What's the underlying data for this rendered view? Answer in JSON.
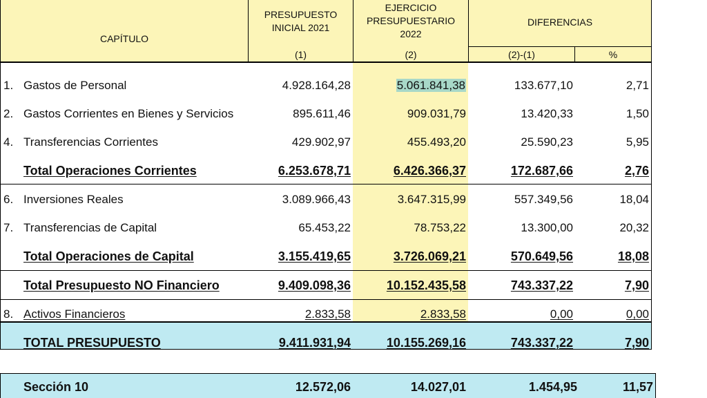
{
  "header": {
    "capitulo": "CAPÍTULO",
    "col1_title": [
      "PRESUPUESTO",
      "INICIAL 2021"
    ],
    "col1_ref": "(1)",
    "col2_title": [
      "EJERCICIO",
      "PRESUPUESTARIO",
      "2022"
    ],
    "col2_ref": "(2)",
    "dif_title": "DIFERENCIAS",
    "dif_ref": "(2)-(1)",
    "pct_ref": "%"
  },
  "rows": [
    {
      "n": "1.",
      "label": "Gastos de Personal",
      "v1": "4.928.164,28",
      "v2": "5.061.841,38",
      "d": "133.677,10",
      "p": "2,71"
    },
    {
      "n": "2.",
      "label": "Gastos Corrientes en Bienes y Servicios",
      "v1": "895.611,46",
      "v2": "909.031,79",
      "d": "13.420,33",
      "p": "1,50"
    },
    {
      "n": "4.",
      "label": "Transferencias Corrientes",
      "v1": "429.902,97",
      "v2": "455.493,20",
      "d": "25.590,23",
      "p": "5,95"
    },
    {
      "n": "",
      "label": "Total Operaciones Corrientes",
      "v1": "6.253.678,71",
      "v2": "6.426.366,37",
      "d": "172.687,66",
      "p": "2,76"
    },
    {
      "n": "6.",
      "label": "Inversiones Reales",
      "v1": "3.089.966,43",
      "v2": "3.647.315,99",
      "d": "557.349,56",
      "p": "18,04"
    },
    {
      "n": "7.",
      "label": "Transferencias de Capital",
      "v1": "65.453,22",
      "v2": "78.753,22",
      "d": "13.300,00",
      "p": "20,32"
    },
    {
      "n": "",
      "label": "Total Operaciones de Capital",
      "v1": "3.155.419,65",
      "v2": "3.726.069,21",
      "d": "570.649,56",
      "p": "18,08"
    },
    {
      "n": "",
      "label": "Total Presupuesto NO Financiero",
      "v1": "9.409.098,36",
      "v2": "10.152.435,58",
      "d": "743.337,22",
      "p": "7,90"
    },
    {
      "n": "8.",
      "label": "Activos Financieros",
      "v1": "2.833,58",
      "v2": "2.833,58",
      "d": "0,00",
      "p": "0,00"
    },
    {
      "n": "",
      "label": "TOTAL PRESUPUESTO",
      "v1": "9.411.931,94",
      "v2": "10.155.269,16",
      "d": "743.337,22",
      "p": "7,90"
    }
  ],
  "seccion": {
    "label": "Sección 10",
    "v1": "12.572,06",
    "v2": "14.027,01",
    "d": "1.454,95",
    "p": "11,57"
  },
  "colors": {
    "header_bg": "#fcf5b8",
    "total_bg": "#bfeaf2",
    "selected_cell": "#a8d8c8"
  }
}
